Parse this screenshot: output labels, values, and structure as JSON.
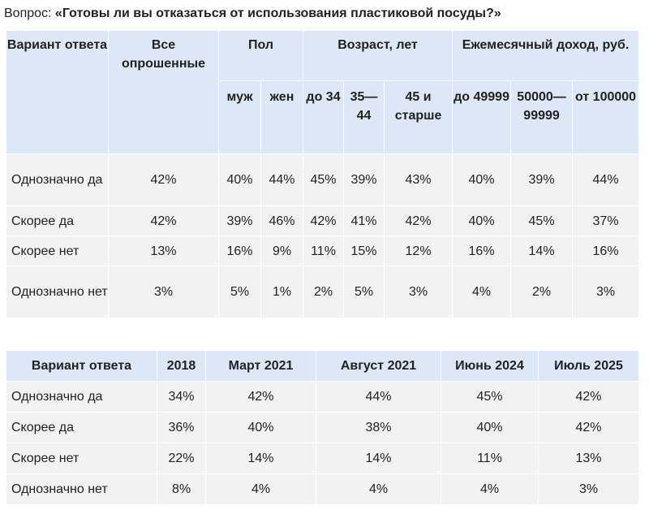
{
  "question": {
    "prefix": "Вопрос: ",
    "text": "«Готовы ли вы отказаться от использования пластиковой посуды?»"
  },
  "table1": {
    "headers": {
      "answer": "Вариант ответа",
      "all": "Все опрошенные",
      "gender": "Пол",
      "age": "Возраст, лет",
      "income": "Ежемесячный доход, руб.",
      "male": "муж",
      "female": "жен",
      "age_1": "до 34",
      "age_2": "35—44",
      "age_3": "45 и старше",
      "income_1": "до 49999",
      "income_2": "50000—99999",
      "income_3": "от 100000"
    },
    "rows": [
      {
        "label": "Однозначно да",
        "values": [
          "42%",
          "40%",
          "44%",
          "45%",
          "39%",
          "43%",
          "40%",
          "39%",
          "44%"
        ]
      },
      {
        "label": "Скорее да",
        "values": [
          "42%",
          "39%",
          "46%",
          "42%",
          "41%",
          "42%",
          "40%",
          "45%",
          "37%"
        ]
      },
      {
        "label": "Скорее нет",
        "values": [
          "13%",
          "16%",
          "9%",
          "11%",
          "15%",
          "12%",
          "16%",
          "14%",
          "16%"
        ]
      },
      {
        "label": "Однозначно нет",
        "values": [
          "3%",
          "5%",
          "1%",
          "2%",
          "5%",
          "3%",
          "4%",
          "2%",
          "3%"
        ]
      }
    ]
  },
  "table2": {
    "headers": [
      "Вариант ответа",
      "2018",
      "Март 2021",
      "Август 2021",
      "Июнь 2024",
      "Июль 2025"
    ],
    "rows": [
      {
        "label": "Однозначно да",
        "values": [
          "34%",
          "42%",
          "44%",
          "45%",
          "42%"
        ]
      },
      {
        "label": "Скорее да",
        "values": [
          "36%",
          "40%",
          "38%",
          "40%",
          "42%"
        ]
      },
      {
        "label": "Скорее нет",
        "values": [
          "22%",
          "14%",
          "14%",
          "11%",
          "13%"
        ]
      },
      {
        "label": "Однозначно нет",
        "values": [
          "8%",
          "4%",
          "4%",
          "4%",
          "3%"
        ]
      }
    ]
  },
  "colors": {
    "header_bg": "#dde8f6",
    "cell_bg": "#f2f2f2",
    "text": "#222222"
  }
}
